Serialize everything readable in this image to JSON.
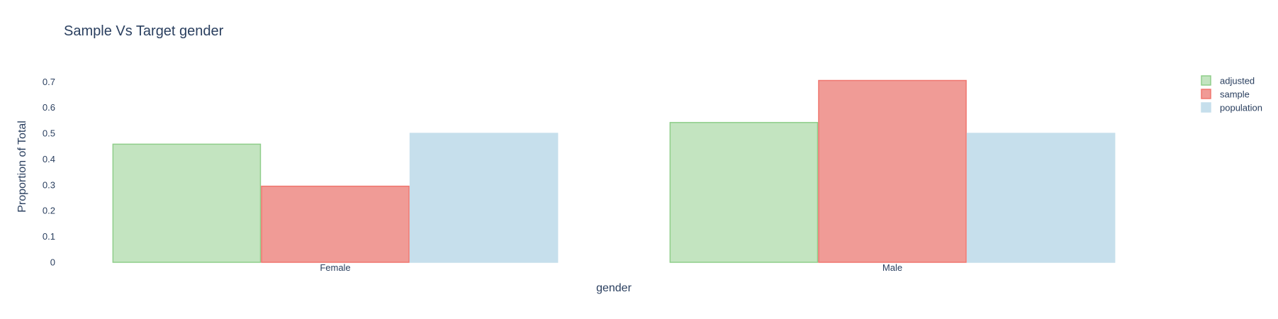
{
  "chart_data": {
    "type": "bar",
    "title": "Sample Vs Target gender",
    "xlabel": "gender",
    "ylabel": "Proportion of Total",
    "categories": [
      "Female",
      "Male"
    ],
    "ylim": [
      0,
      0.72
    ],
    "yticks": [
      0,
      0.1,
      0.2,
      0.3,
      0.4,
      0.5,
      0.6,
      0.7
    ],
    "ytick_labels": [
      "0",
      "0.1",
      "0.2",
      "0.3",
      "0.4",
      "0.5",
      "0.6",
      "0.7"
    ],
    "grid": false,
    "legend_position": "top-right",
    "series": [
      {
        "name": "adjusted",
        "values": [
          0.458,
          0.542
        ],
        "fill": "#c3e4c0",
        "stroke": "#8fce8a"
      },
      {
        "name": "sample",
        "values": [
          0.295,
          0.705
        ],
        "fill": "#f09b96",
        "stroke": "#f0766f"
      },
      {
        "name": "population",
        "values": [
          0.5,
          0.5
        ],
        "fill": "#c6dfec",
        "stroke": "#c6dfec"
      }
    ]
  }
}
